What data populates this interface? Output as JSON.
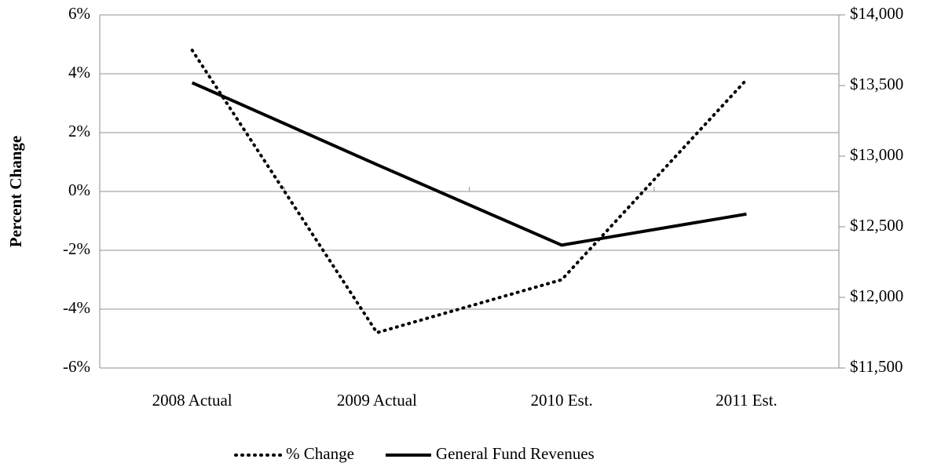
{
  "chart_data": {
    "type": "line",
    "y_label": "Percent Change",
    "categories": [
      "2008 Actual",
      "2009 Actual",
      "2010 Est.",
      "2011 Est."
    ],
    "series": [
      {
        "name": "% Change",
        "color": "#000000",
        "dash": "dotted",
        "values": [
          4.8,
          -4.8,
          -3.0,
          3.8
        ]
      },
      {
        "name": "General Fund Revenues",
        "color": "#000000",
        "dash": "solid",
        "axis": "y2",
        "values": [
          13520,
          12940,
          12370,
          12590
        ]
      }
    ],
    "ylim": [
      -6,
      6
    ],
    "yticks": [
      {
        "value": -6,
        "label": "-6%"
      },
      {
        "value": -4,
        "label": "-4%"
      },
      {
        "value": -2,
        "label": "-2%"
      },
      {
        "value": 0,
        "label": "0%"
      },
      {
        "value": 2,
        "label": "2%"
      },
      {
        "value": 4,
        "label": "4%"
      },
      {
        "value": 6,
        "label": "6%"
      }
    ],
    "y2lim": [
      11500,
      14000
    ],
    "y2ticks": [
      {
        "value": 11500,
        "label": "$11,500"
      },
      {
        "value": 12000,
        "label": "$12,000"
      },
      {
        "value": 12500,
        "label": "$12,500"
      },
      {
        "value": 13000,
        "label": "$13,000"
      },
      {
        "value": 13500,
        "label": "$13,500"
      },
      {
        "value": 14000,
        "label": "$14,000"
      }
    ],
    "grid": true,
    "legend": "bottom"
  }
}
